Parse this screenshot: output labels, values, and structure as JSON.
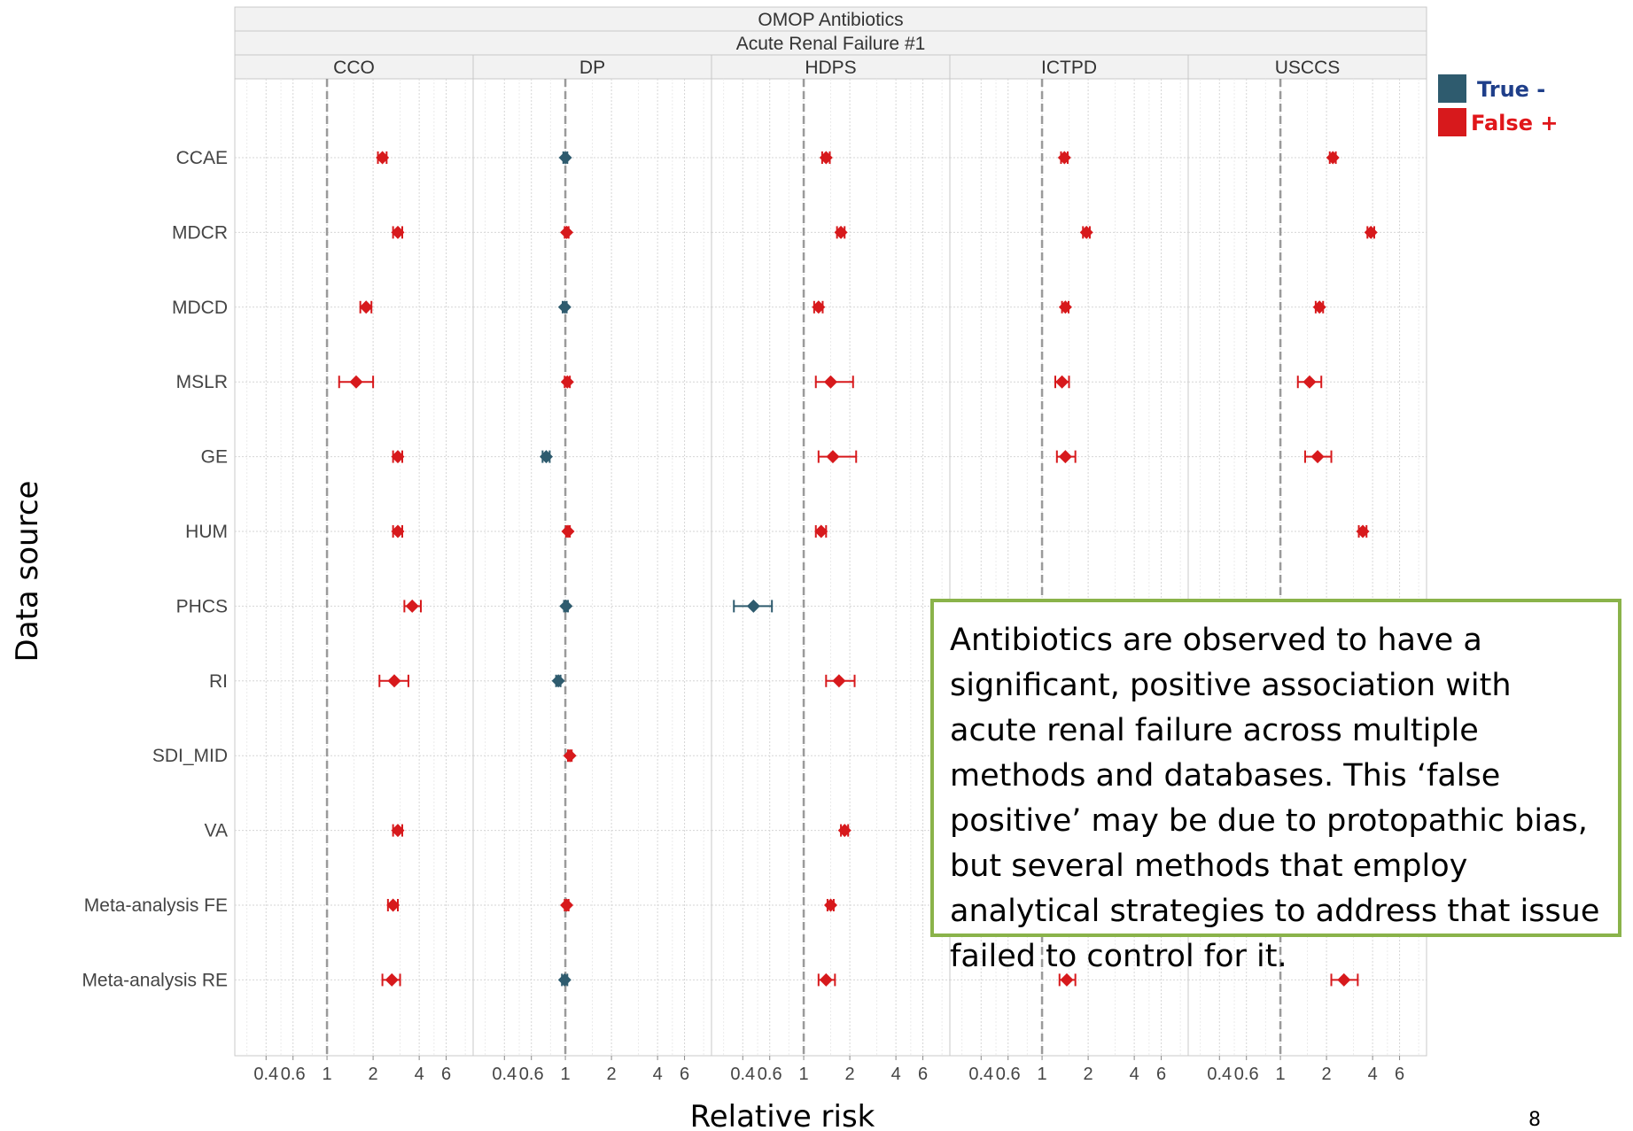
{
  "page_number": "8",
  "callout": {
    "text": "Antibiotics are observed to have a significant, positive association with acute renal failure across multiple methods and databases.  This ‘false positive’ may be due to protopathic bias, but several methods that employ analytical strategies to address that issue failed to control for it."
  },
  "chart_data": {
    "type": "forest",
    "title": "OMOP Antibiotics",
    "subtitle": "Acute Renal Failure #1",
    "xlabel": "Relative risk",
    "ylabel": "Data source",
    "x_scale": "log",
    "xlim": [
      0.25,
      9
    ],
    "x_ticks": [
      0.4,
      0.6,
      1,
      2,
      4,
      6
    ],
    "x_tick_labels": [
      "0.4",
      "0.6",
      "1",
      "2",
      "4",
      "6"
    ],
    "reference_line": 1,
    "grid": true,
    "legend_position": "top-right",
    "legend": [
      {
        "label": "True -",
        "color": "#2e5b6e",
        "text_color": "#1f3f8a"
      },
      {
        "label": "False +",
        "color": "#d7191c",
        "text_color": "#e0161a"
      }
    ],
    "colors": {
      "true_negative": "#2e5b6e",
      "false_positive": "#d7191c"
    },
    "rows": [
      "CCAE",
      "MDCR",
      "MDCD",
      "MSLR",
      "GE",
      "HUM",
      "PHCS",
      "RI",
      "SDI_MID",
      "VA",
      "Meta-analysis FE",
      "Meta-analysis RE"
    ],
    "panels": [
      {
        "name": "CCO",
        "points": [
          {
            "row": "CCAE",
            "est": 2.3,
            "lo": 2.15,
            "hi": 2.45,
            "class": "false_positive"
          },
          {
            "row": "MDCR",
            "est": 2.9,
            "lo": 2.7,
            "hi": 3.1,
            "class": "false_positive"
          },
          {
            "row": "MDCD",
            "est": 1.8,
            "lo": 1.65,
            "hi": 1.95,
            "class": "false_positive"
          },
          {
            "row": "MSLR",
            "est": 1.55,
            "lo": 1.2,
            "hi": 2.0,
            "class": "false_positive"
          },
          {
            "row": "GE",
            "est": 2.9,
            "lo": 2.7,
            "hi": 3.1,
            "class": "false_positive"
          },
          {
            "row": "HUM",
            "est": 2.9,
            "lo": 2.7,
            "hi": 3.1,
            "class": "false_positive"
          },
          {
            "row": "PHCS",
            "est": 3.6,
            "lo": 3.2,
            "hi": 4.1,
            "class": "false_positive"
          },
          {
            "row": "RI",
            "est": 2.75,
            "lo": 2.2,
            "hi": 3.4,
            "class": "false_positive"
          },
          {
            "row": "VA",
            "est": 2.9,
            "lo": 2.7,
            "hi": 3.1,
            "class": "false_positive"
          },
          {
            "row": "Meta-analysis FE",
            "est": 2.7,
            "lo": 2.5,
            "hi": 2.9,
            "class": "false_positive"
          },
          {
            "row": "Meta-analysis RE",
            "est": 2.65,
            "lo": 2.3,
            "hi": 3.0,
            "class": "false_positive"
          }
        ]
      },
      {
        "name": "DP",
        "points": [
          {
            "row": "CCAE",
            "est": 1.0,
            "lo": 0.97,
            "hi": 1.03,
            "class": "true_negative"
          },
          {
            "row": "MDCR",
            "est": 1.02,
            "lo": 0.99,
            "hi": 1.05,
            "class": "false_positive"
          },
          {
            "row": "MDCD",
            "est": 0.99,
            "lo": 0.96,
            "hi": 1.02,
            "class": "true_negative"
          },
          {
            "row": "MSLR",
            "est": 1.03,
            "lo": 0.99,
            "hi": 1.07,
            "class": "false_positive"
          },
          {
            "row": "GE",
            "est": 0.75,
            "lo": 0.71,
            "hi": 0.79,
            "class": "true_negative"
          },
          {
            "row": "HUM",
            "est": 1.04,
            "lo": 1.01,
            "hi": 1.07,
            "class": "false_positive"
          },
          {
            "row": "PHCS",
            "est": 1.01,
            "lo": 0.98,
            "hi": 1.04,
            "class": "true_negative"
          },
          {
            "row": "RI",
            "est": 0.9,
            "lo": 0.87,
            "hi": 0.93,
            "class": "true_negative"
          },
          {
            "row": "SDI_MID",
            "est": 1.07,
            "lo": 1.04,
            "hi": 1.1,
            "class": "false_positive"
          },
          {
            "row": "Meta-analysis FE",
            "est": 1.02,
            "lo": 0.99,
            "hi": 1.05,
            "class": "false_positive"
          },
          {
            "row": "Meta-analysis RE",
            "est": 0.99,
            "lo": 0.95,
            "hi": 1.03,
            "class": "true_negative"
          }
        ]
      },
      {
        "name": "HDPS",
        "points": [
          {
            "row": "CCAE",
            "est": 1.4,
            "lo": 1.32,
            "hi": 1.48,
            "class": "false_positive"
          },
          {
            "row": "MDCR",
            "est": 1.75,
            "lo": 1.65,
            "hi": 1.85,
            "class": "false_positive"
          },
          {
            "row": "MDCD",
            "est": 1.25,
            "lo": 1.17,
            "hi": 1.33,
            "class": "false_positive"
          },
          {
            "row": "MSLR",
            "est": 1.5,
            "lo": 1.2,
            "hi": 2.1,
            "class": "false_positive"
          },
          {
            "row": "GE",
            "est": 1.55,
            "lo": 1.25,
            "hi": 2.2,
            "class": "false_positive"
          },
          {
            "row": "HUM",
            "est": 1.3,
            "lo": 1.2,
            "hi": 1.4,
            "class": "false_positive"
          },
          {
            "row": "PHCS",
            "est": 0.47,
            "lo": 0.35,
            "hi": 0.62,
            "class": "true_negative"
          },
          {
            "row": "RI",
            "est": 1.7,
            "lo": 1.4,
            "hi": 2.15,
            "class": "false_positive"
          },
          {
            "row": "VA",
            "est": 1.85,
            "lo": 1.75,
            "hi": 1.95,
            "class": "false_positive"
          },
          {
            "row": "Meta-analysis FE",
            "est": 1.5,
            "lo": 1.43,
            "hi": 1.57,
            "class": "false_positive"
          },
          {
            "row": "Meta-analysis RE",
            "est": 1.4,
            "lo": 1.25,
            "hi": 1.6,
            "class": "false_positive"
          }
        ]
      },
      {
        "name": "ICTPD",
        "points": [
          {
            "row": "CCAE",
            "est": 1.4,
            "lo": 1.33,
            "hi": 1.47,
            "class": "false_positive"
          },
          {
            "row": "MDCR",
            "est": 1.95,
            "lo": 1.85,
            "hi": 2.05,
            "class": "false_positive"
          },
          {
            "row": "MDCD",
            "est": 1.42,
            "lo": 1.35,
            "hi": 1.49,
            "class": "false_positive"
          },
          {
            "row": "MSLR",
            "est": 1.35,
            "lo": 1.22,
            "hi": 1.5,
            "class": "false_positive"
          },
          {
            "row": "GE",
            "est": 1.42,
            "lo": 1.25,
            "hi": 1.65,
            "class": "false_positive"
          },
          {
            "row": "Meta-analysis RE",
            "est": 1.45,
            "lo": 1.3,
            "hi": 1.65,
            "class": "false_positive"
          }
        ]
      },
      {
        "name": "USCCS",
        "points": [
          {
            "row": "CCAE",
            "est": 2.2,
            "lo": 2.1,
            "hi": 2.3,
            "class": "false_positive"
          },
          {
            "row": "MDCR",
            "est": 3.9,
            "lo": 3.7,
            "hi": 4.1,
            "class": "false_positive"
          },
          {
            "row": "MDCD",
            "est": 1.8,
            "lo": 1.7,
            "hi": 1.9,
            "class": "false_positive"
          },
          {
            "row": "MSLR",
            "est": 1.55,
            "lo": 1.3,
            "hi": 1.85,
            "class": "false_positive"
          },
          {
            "row": "GE",
            "est": 1.75,
            "lo": 1.45,
            "hi": 2.15,
            "class": "false_positive"
          },
          {
            "row": "HUM",
            "est": 3.45,
            "lo": 3.25,
            "hi": 3.65,
            "class": "false_positive"
          },
          {
            "row": "Meta-analysis RE",
            "est": 2.6,
            "lo": 2.15,
            "hi": 3.2,
            "class": "false_positive"
          }
        ]
      }
    ]
  }
}
